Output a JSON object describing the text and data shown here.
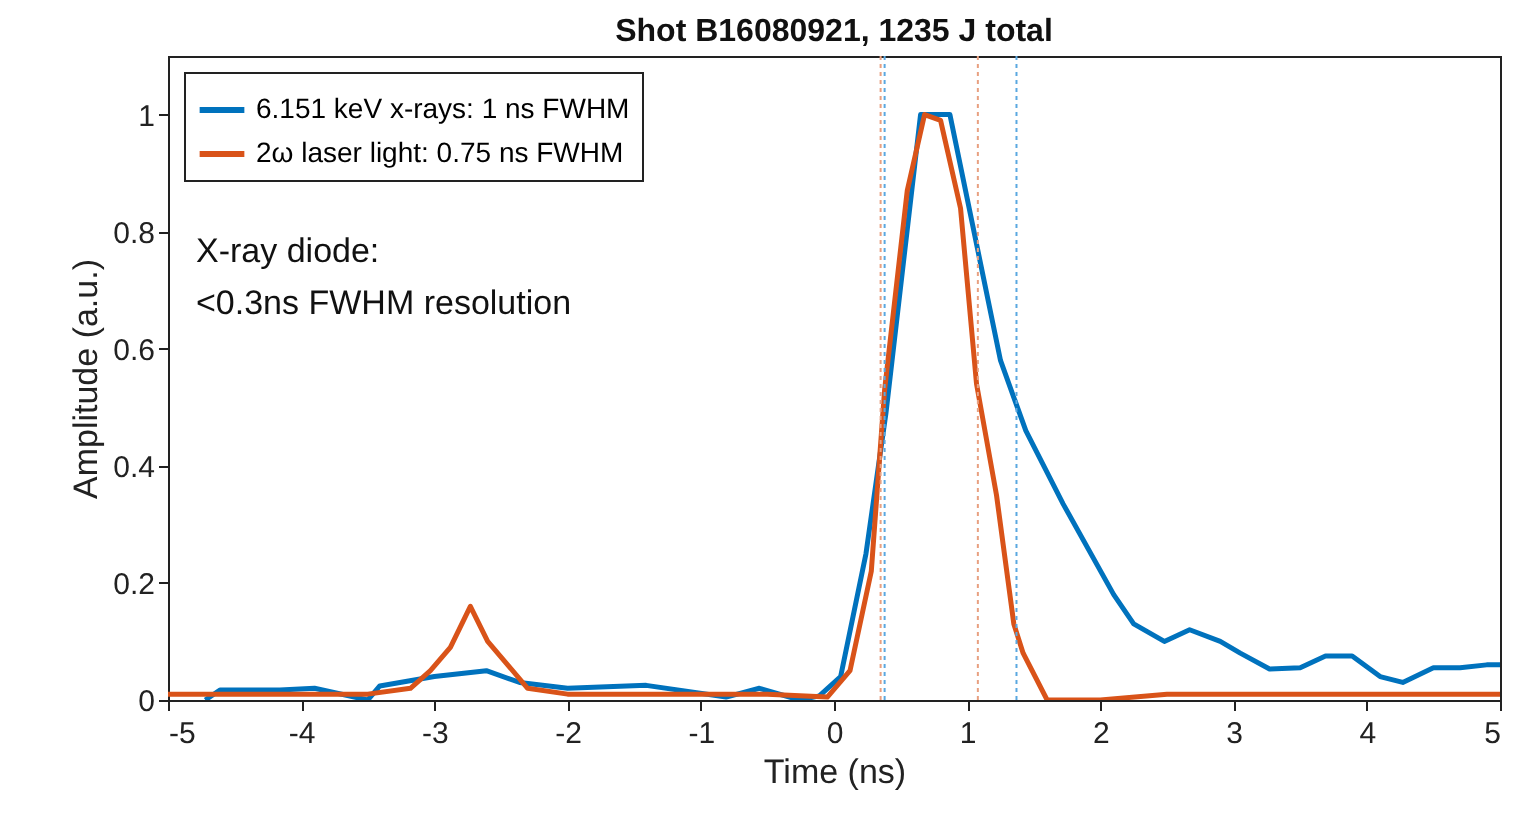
{
  "chart_data": {
    "type": "line",
    "title": "Shot B16080921, 1235 J total",
    "xlabel": "Time (ns)",
    "ylabel": "Amplitude (a.u.)",
    "xlim": [
      -5,
      5
    ],
    "xticks": [
      -5,
      -4,
      -3,
      -2,
      -1,
      0,
      1,
      2,
      3,
      4,
      5
    ],
    "ylim": [
      0,
      1.1
    ],
    "yticks": [
      0,
      0.2,
      0.4,
      0.6,
      0.8,
      1
    ],
    "grid": false,
    "legend": "top left",
    "marker": "none",
    "line_style": "solid",
    "annotations": [
      "X-ray diode:",
      "<0.3ns FWHM resolution"
    ],
    "ref_lines": [
      {
        "axis": "x",
        "value": 0.35,
        "label": null,
        "color": "#e8a080",
        "line_style": "dotted"
      },
      {
        "axis": "x",
        "value": 0.38,
        "label": null,
        "color": "#5aa8e0",
        "line_style": "dotted"
      },
      {
        "axis": "x",
        "value": 1.08,
        "label": null,
        "color": "#e8a080",
        "line_style": "dotted"
      },
      {
        "axis": "x",
        "value": 1.37,
        "label": null,
        "color": "#5aa8e0",
        "line_style": "dotted"
      }
    ],
    "series": [
      {
        "name": "6.151 keV x-rays: 1 ns FWHM",
        "color": "#0072bd",
        "x": [
          -4.72,
          -4.61,
          -4.16,
          -3.9,
          -3.5,
          -3.41,
          -3.0,
          -2.61,
          -2.36,
          -2.0,
          -1.41,
          -0.81,
          -0.56,
          -0.26,
          -0.11,
          0.05,
          0.24,
          0.39,
          0.65,
          0.87,
          1.25,
          1.44,
          1.72,
          2.1,
          2.25,
          2.48,
          2.67,
          2.9,
          3.05,
          3.27,
          3.5,
          3.69,
          3.89,
          4.1,
          4.27,
          4.5,
          4.7,
          4.9,
          5.0
        ],
        "values": [
          0.0,
          0.017,
          0.017,
          0.02,
          0.0,
          0.024,
          0.04,
          0.05,
          0.03,
          0.02,
          0.025,
          0.005,
          0.02,
          0.0,
          0.007,
          0.04,
          0.25,
          0.49,
          1.0,
          1.0,
          0.58,
          0.46,
          0.335,
          0.18,
          0.13,
          0.1,
          0.12,
          0.1,
          0.08,
          0.053,
          0.055,
          0.075,
          0.075,
          0.04,
          0.03,
          0.055,
          0.055,
          0.06,
          0.06
        ]
      },
      {
        "name": "2ω laser light: 0.75 ns FWHM",
        "color": "#d95319",
        "x": [
          -5.0,
          -4.5,
          -4.0,
          -3.5,
          -3.18,
          -3.03,
          -2.88,
          -2.73,
          -2.6,
          -2.45,
          -2.3,
          -2.0,
          -1.5,
          -1.0,
          -0.5,
          -0.05,
          0.12,
          0.28,
          0.38,
          0.55,
          0.68,
          0.8,
          0.95,
          1.07,
          1.22,
          1.35,
          1.42,
          1.6,
          2.0,
          2.5,
          3.0,
          3.5,
          4.0,
          4.5,
          5.0
        ],
        "values": [
          0.01,
          0.01,
          0.01,
          0.01,
          0.02,
          0.05,
          0.09,
          0.16,
          0.1,
          0.06,
          0.02,
          0.01,
          0.01,
          0.01,
          0.01,
          0.005,
          0.05,
          0.22,
          0.53,
          0.87,
          1.0,
          0.99,
          0.84,
          0.54,
          0.35,
          0.13,
          0.08,
          0.0,
          0.0,
          0.01,
          0.01,
          0.01,
          0.01,
          0.01,
          0.01
        ]
      }
    ]
  }
}
